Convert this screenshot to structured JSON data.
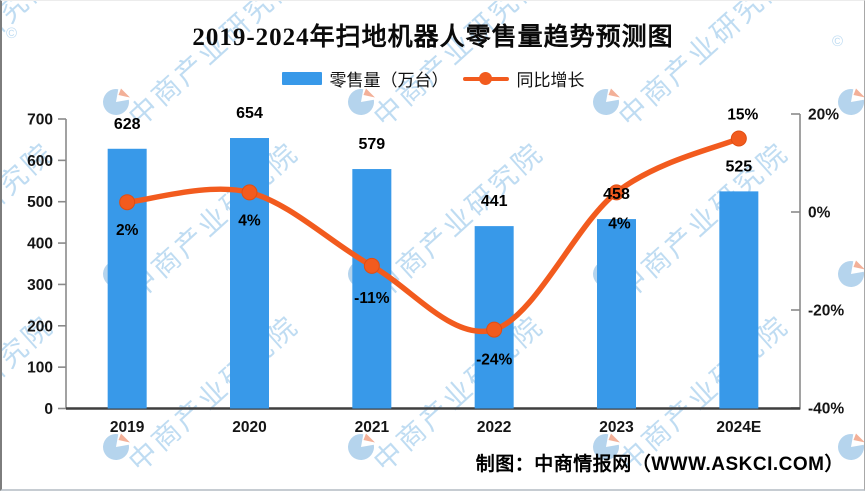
{
  "title": "2019-2024年扫地机器人零售量趋势预测图",
  "legend": {
    "bar_label": "零售量（万台）",
    "line_label": "同比增长"
  },
  "footer": {
    "credit": "制图：中商情报网（WWW.ASKCI.COM）"
  },
  "watermark": {
    "text": "中商产业研究院",
    "copyright": "©"
  },
  "colors": {
    "bar": "#3899E9",
    "line": "#F25B1E",
    "marker_stroke": "#E04E12",
    "axis": "#8a8a8a",
    "x_axis": "#3f3f3f",
    "watermark_blue": "#b9d9f1",
    "logo_blue": "#a9cdea",
    "logo_orange": "#f2a387"
  },
  "chart_data": {
    "type": "bar+line combo",
    "title": "2019-2024年扫地机器人零售量趋势预测图",
    "categories": [
      "2019",
      "2020",
      "2021",
      "2022",
      "2023",
      "2024E"
    ],
    "series": [
      {
        "name": "零售量（万台）",
        "type": "bar",
        "axis": "left",
        "values": [
          628,
          654,
          579,
          441,
          458,
          525
        ],
        "value_labels": [
          "628",
          "654",
          "579",
          "441",
          "458",
          "525"
        ]
      },
      {
        "name": "同比增长",
        "type": "line",
        "axis": "right",
        "values": [
          2,
          4,
          -11,
          -24,
          4,
          15
        ],
        "value_labels": [
          "2%",
          "4%",
          "-11%",
          "-24%",
          "4%",
          "15%"
        ]
      }
    ],
    "left_axis": {
      "min": 0,
      "max": 700,
      "step": 100,
      "ticks": [
        "0",
        "100",
        "200",
        "300",
        "400",
        "500",
        "600",
        "700"
      ]
    },
    "right_axis": {
      "min": -40,
      "max": 20,
      "step": 20,
      "ticks": [
        "20%",
        "0%",
        "-20%",
        "-40%"
      ]
    },
    "grid": false,
    "legend_position": "top"
  }
}
